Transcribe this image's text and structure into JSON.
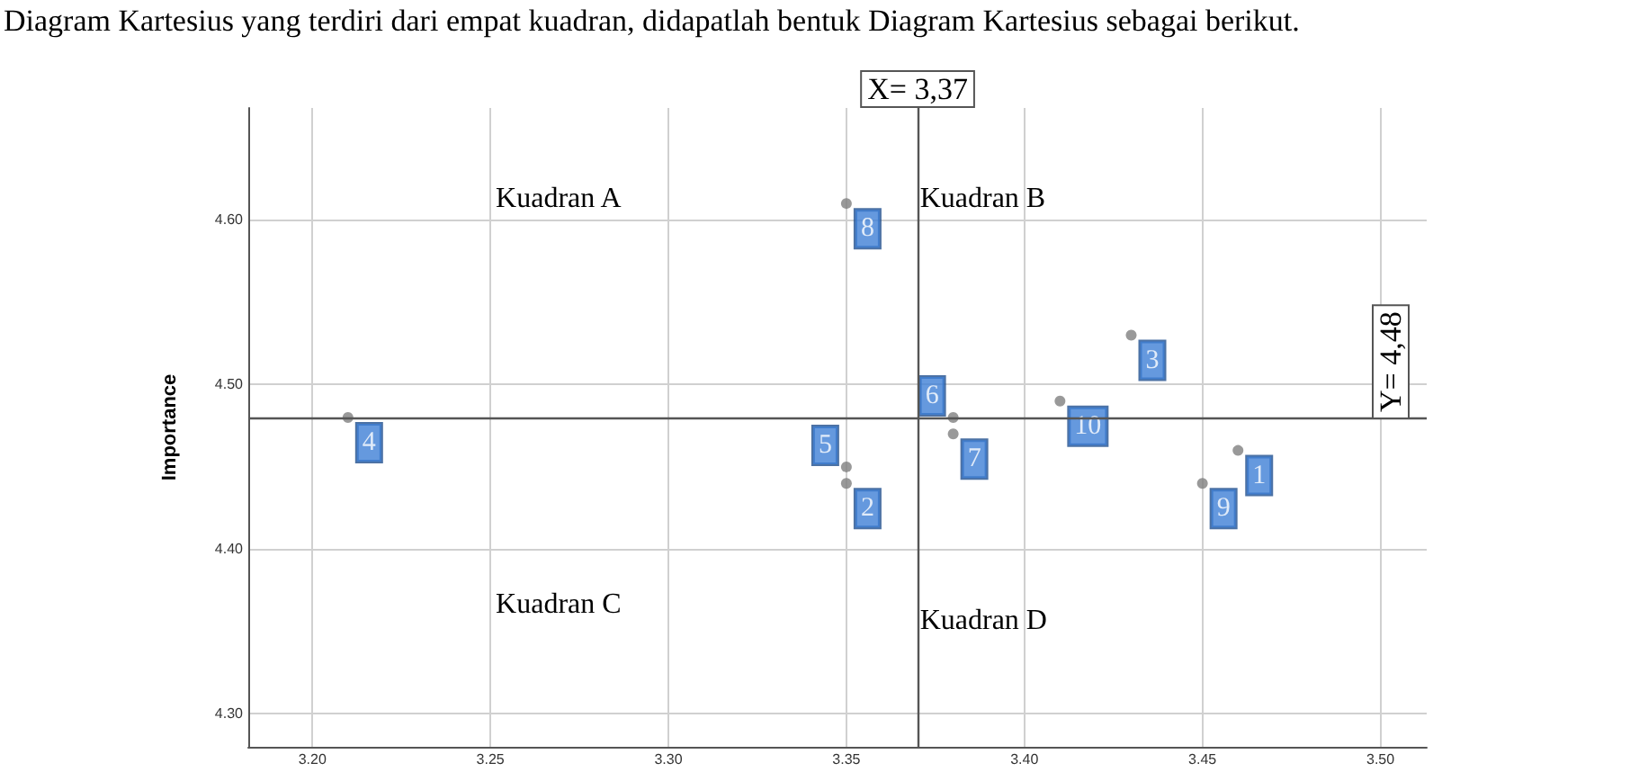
{
  "chart_data": {
    "type": "scatter",
    "ylabel": "Importance",
    "series": [
      {
        "name": "1",
        "color": "#808080",
        "x": [
          3.46
        ],
        "values": [
          4.46
        ]
      },
      {
        "name": "2",
        "color": "#808080",
        "x": [
          3.35
        ],
        "values": [
          4.44
        ]
      },
      {
        "name": "3",
        "color": "#808080",
        "x": [
          3.43
        ],
        "values": [
          4.53
        ]
      },
      {
        "name": "4",
        "color": "#808080",
        "x": [
          3.21
        ],
        "values": [
          4.48
        ]
      },
      {
        "name": "5",
        "color": "#808080",
        "x": [
          3.35
        ],
        "values": [
          4.45
        ]
      },
      {
        "name": "6",
        "color": "#808080",
        "x": [
          3.38
        ],
        "values": [
          4.48
        ]
      },
      {
        "name": "7",
        "color": "#808080",
        "x": [
          3.38
        ],
        "values": [
          4.47
        ]
      },
      {
        "name": "8",
        "color": "#808080",
        "x": [
          3.35
        ],
        "values": [
          4.61
        ]
      },
      {
        "name": "9",
        "color": "#808080",
        "x": [
          3.45
        ],
        "values": [
          4.44
        ]
      },
      {
        "name": "10",
        "color": "#808080",
        "x": [
          3.41
        ],
        "values": [
          4.49
        ]
      }
    ],
    "xlim": [
      3.182,
      3.513
    ],
    "xticks": [
      {
        "value": 3.2,
        "label": "3.20"
      },
      {
        "value": 3.25,
        "label": "3.25"
      },
      {
        "value": 3.3,
        "label": "3.30"
      },
      {
        "value": 3.35,
        "label": "3.35"
      },
      {
        "value": 3.4,
        "label": "3.40"
      },
      {
        "value": 3.45,
        "label": "3.45"
      },
      {
        "value": 3.5,
        "label": "3.50"
      }
    ],
    "ylim": [
      4.28,
      4.668
    ],
    "yticks": [
      {
        "value": 4.3,
        "label": "4.30"
      },
      {
        "value": 4.4,
        "label": "4.40"
      },
      {
        "value": 4.5,
        "label": "4.50"
      },
      {
        "value": 4.6,
        "label": "4.60"
      }
    ],
    "ref_lines": [
      {
        "axis": "x",
        "value": 3.37,
        "label": "X= 3,37"
      },
      {
        "axis": "y",
        "value": 4.48,
        "label": "Y= 4,48"
      }
    ],
    "annotations": [
      "Diagram Kartesius yang terdiri dari empat kuadran, didapatlah bentuk Diagram Kartesius sebagai berikut.",
      "Kuadran A",
      "Kuadran B",
      "Kuadran C",
      "Kuadran D"
    ],
    "grid": true,
    "marker": "circle"
  }
}
